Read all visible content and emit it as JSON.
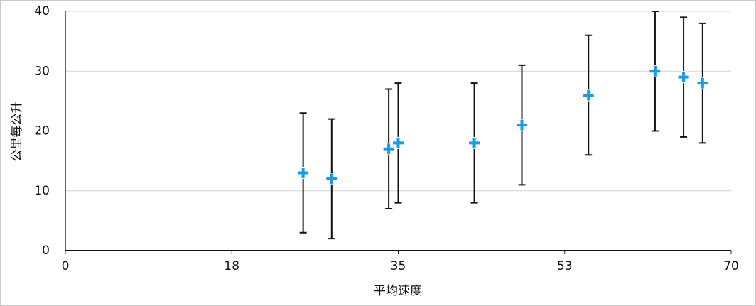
{
  "chart_data": {
    "type": "scatter",
    "x_label": "平均速度",
    "y_label": "公里每公升",
    "x": [
      25,
      28,
      34,
      35,
      43,
      48,
      55,
      62,
      65,
      67
    ],
    "values": [
      13,
      12,
      17,
      18,
      18,
      21,
      26,
      30,
      29,
      28
    ],
    "errors": [
      10,
      10,
      10,
      10,
      10,
      10,
      10,
      10,
      10,
      10
    ],
    "color": "#1a9be8",
    "xlim": [
      0,
      70
    ],
    "ylim": [
      0,
      40
    ],
    "xticks": [
      0,
      {
        "value": 17.5,
        "label": "18"
      },
      35,
      {
        "value": 52.5,
        "label": "53"
      },
      70
    ],
    "yticks": [
      0,
      10,
      20,
      30,
      40
    ],
    "grid": true
  }
}
